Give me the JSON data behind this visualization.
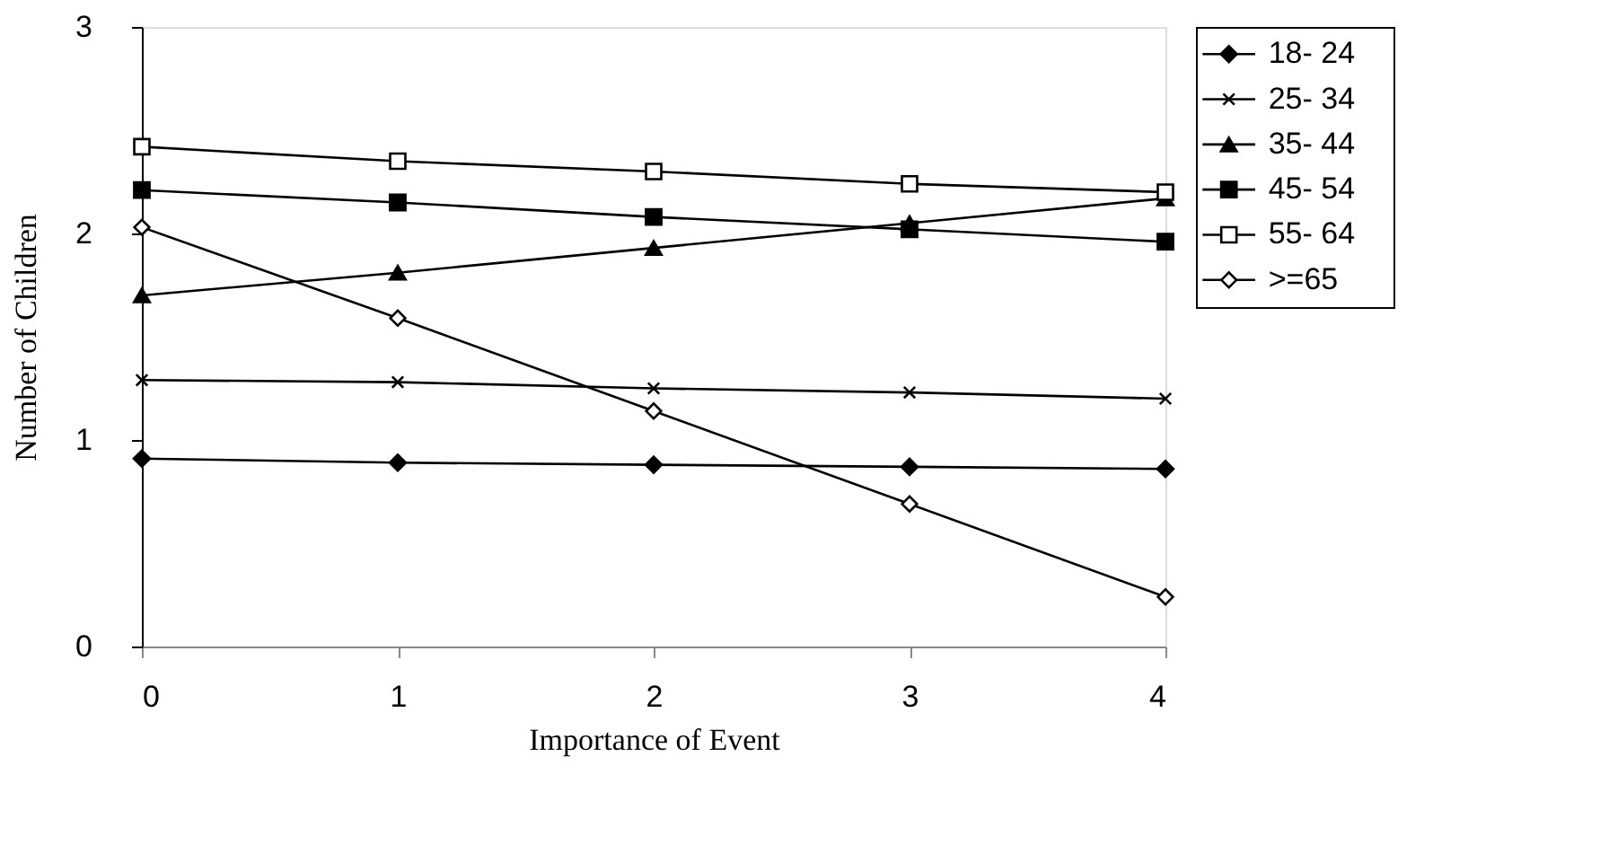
{
  "chart_data": {
    "type": "line",
    "xlabel": "Importance of Event",
    "ylabel": "Number of Children",
    "x": [
      0,
      1,
      2,
      3,
      4
    ],
    "xlim": [
      0,
      4
    ],
    "xticks": [
      0,
      1,
      2,
      3,
      4
    ],
    "ylim": [
      0,
      3
    ],
    "yticks": [
      0,
      1,
      2,
      3
    ],
    "grid": false,
    "legend": "right",
    "line_style": "solid",
    "series": [
      {
        "name": "18- 24",
        "color": "#000000",
        "marker": "diamond",
        "values": [
          0.91,
          0.89,
          0.88,
          0.87,
          0.86
        ]
      },
      {
        "name": "25- 34",
        "color": "#000000",
        "marker": "cross",
        "values": [
          1.29,
          1.28,
          1.25,
          1.23,
          1.2
        ]
      },
      {
        "name": "35- 44",
        "color": "#000000",
        "marker": "triangle",
        "values": [
          1.7,
          1.81,
          1.93,
          2.05,
          2.17
        ]
      },
      {
        "name": "45- 54",
        "color": "#000000",
        "marker": "square",
        "values": [
          2.21,
          2.15,
          2.08,
          2.02,
          1.96
        ]
      },
      {
        "name": "55- 64",
        "color": "#000000",
        "marker": "square",
        "values": [
          2.42,
          2.35,
          2.3,
          2.24,
          2.2
        ]
      },
      {
        "name": ">=65",
        "color": "#000000",
        "marker": "diamond",
        "values": [
          2.03,
          1.59,
          1.14,
          0.69,
          0.24
        ]
      }
    ]
  }
}
